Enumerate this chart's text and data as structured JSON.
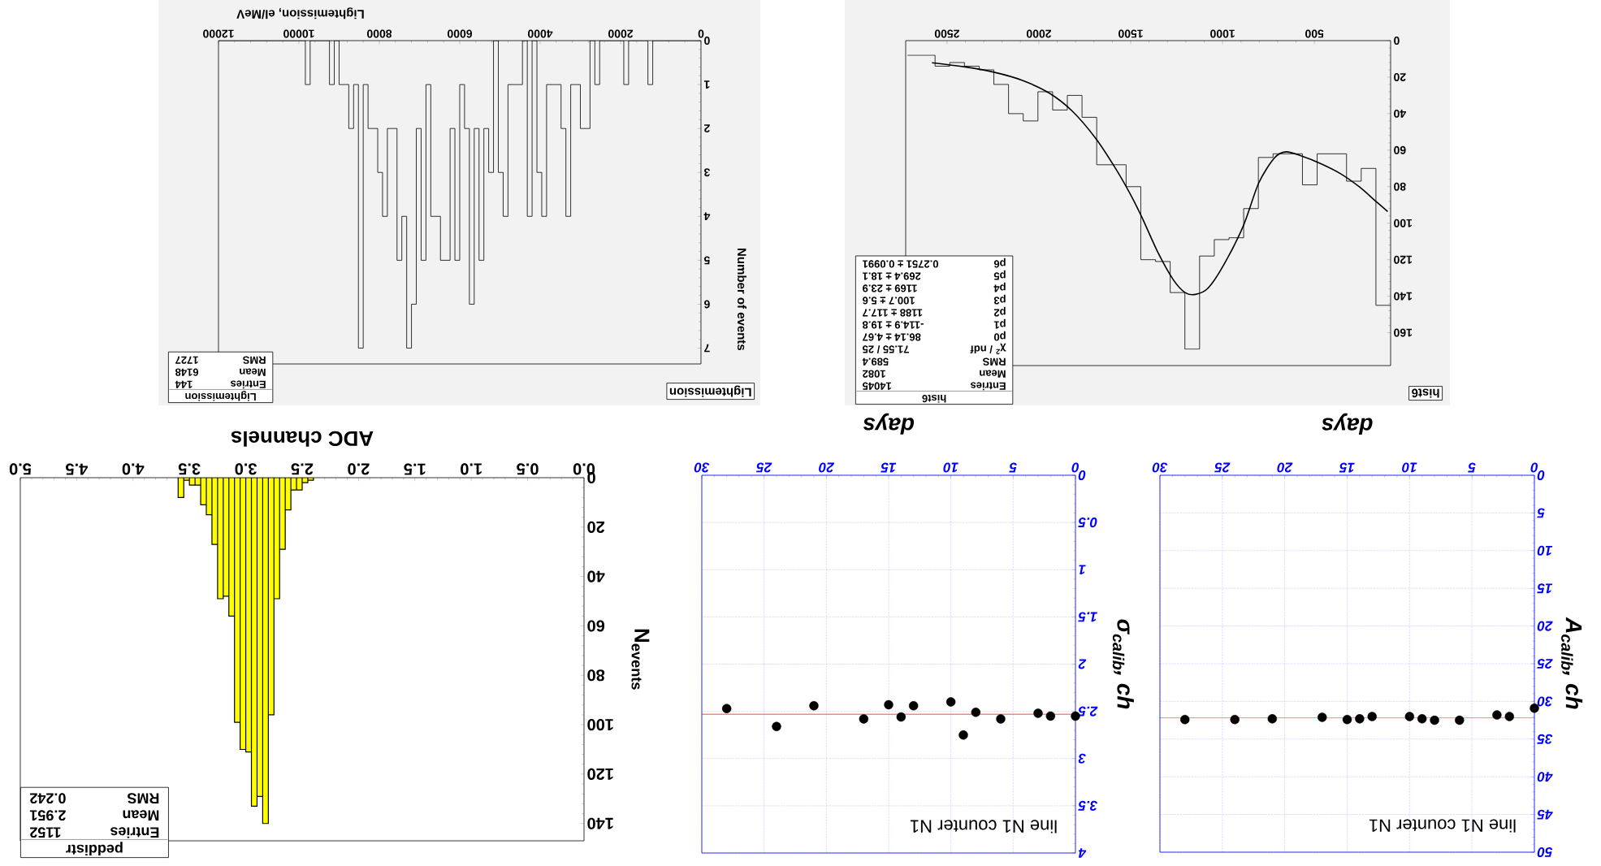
{
  "chart_data": [
    {
      "type": "histogram",
      "title": "Lightemission",
      "xlabel": "Lightemission, el/MeV",
      "ylabel": "Number of events",
      "color": "#000000",
      "bins": [
        0,
        120,
        240,
        360,
        480,
        600,
        720,
        840,
        960,
        1080,
        1200,
        1320,
        1440,
        1560,
        1680,
        1800,
        1920,
        2040,
        2160,
        2280,
        2400,
        2520,
        2640,
        2760,
        2880,
        3000,
        3120,
        3240,
        3360,
        3480,
        3600,
        3720,
        3840,
        3960,
        4080,
        4200,
        4320,
        4440,
        4560,
        4680,
        4800,
        4920,
        5040,
        5160,
        5280,
        5400,
        5520,
        5640,
        5760,
        5880,
        6000,
        6120,
        6240,
        6360,
        6480,
        6600,
        6720,
        6840,
        6960,
        7080,
        7200,
        7320,
        7440,
        7560,
        7680,
        7800,
        7920,
        8040,
        8160,
        8280,
        8400,
        8520,
        8640,
        8760,
        8880,
        9000,
        9120,
        9240,
        9360,
        9480,
        9600,
        9720,
        9840,
        9960,
        10080,
        10200,
        10320,
        10440,
        10560,
        10680,
        10800,
        10920,
        11040,
        11160,
        11280,
        11400,
        11520,
        11640,
        11760,
        11880,
        12000
      ],
      "values": [
        0,
        0,
        0,
        0,
        0,
        0,
        0,
        0,
        0,
        0,
        1,
        0,
        0,
        0,
        0,
        1,
        0,
        0,
        0,
        0,
        0,
        1,
        0,
        2,
        2,
        1,
        1,
        4,
        2,
        1,
        1,
        1,
        4,
        3,
        0,
        4,
        0,
        1,
        1,
        1,
        4,
        3,
        0,
        3,
        2,
        5,
        2,
        6,
        2,
        1,
        5,
        2,
        5,
        5,
        4,
        4,
        1,
        5,
        2,
        6,
        7,
        4,
        5,
        2,
        2,
        4,
        3,
        2,
        2,
        1,
        7,
        1,
        2,
        1,
        1,
        0,
        1,
        0,
        0,
        0,
        0,
        1,
        0,
        0,
        0,
        0,
        0,
        0,
        0,
        0,
        0,
        0,
        0,
        0,
        0,
        0,
        0,
        0,
        0,
        0
      ],
      "xlim": [
        12000,
        0
      ],
      "ylim": [
        7.36,
        0
      ],
      "xticks": [
        0,
        2000,
        4000,
        6000,
        8000,
        10000,
        12000
      ],
      "yticks": [
        0,
        1,
        2,
        3,
        4,
        5,
        6,
        7
      ],
      "annotations": [
        "Lightemission",
        "Entries",
        "144",
        "Mean",
        "6148",
        "RMS",
        "1727"
      ]
    },
    {
      "type": "histogram",
      "title": "hist6",
      "xlim": [
        2725,
        85
      ],
      "ylim": [
        178,
        0
      ],
      "xticks": [
        500,
        1000,
        1500,
        2000,
        2500
      ],
      "yticks": [
        0,
        20,
        40,
        60,
        80,
        100,
        120,
        140,
        160
      ],
      "series": [
        {
          "type": "histogram",
          "color": "#000000",
          "bins": [
            85,
            165,
            245,
            325,
            405,
            485,
            565,
            645,
            725,
            805,
            885,
            965,
            1045,
            1125,
            1205,
            1285,
            1365,
            1445,
            1525,
            1605,
            1685,
            1765,
            1845,
            1925,
            2005,
            2085,
            2165,
            2245,
            2325,
            2405,
            2485,
            2565,
            2645,
            2715
          ],
          "values": [
            145,
            70,
            77,
            62,
            62,
            79,
            62,
            62,
            64,
            92,
            108,
            109,
            118,
            169,
            138,
            121,
            120,
            80,
            68,
            68,
            42,
            30,
            38,
            28,
            44,
            40,
            24,
            16,
            14,
            12,
            14,
            8,
            8
          ]
        },
        {
          "type": "line",
          "color": "#000000",
          "x": [
            101,
            169,
            254,
            359,
            465,
            570,
            655,
            718,
            803,
            887,
            993,
            1078,
            1147,
            1204,
            1268,
            1352,
            1437,
            1500,
            1585,
            1690,
            1817,
            1944,
            2092,
            2240,
            2409,
            2582
          ],
          "values": [
            93.6,
            87.7,
            80.2,
            72.8,
            67.4,
            63.2,
            60.9,
            64.3,
            78,
            101.5,
            122.8,
            135.5,
            139,
            138,
            131,
            116,
            97.2,
            84.5,
            69.6,
            53.6,
            38.7,
            28.7,
            21.7,
            17.4,
            14.3,
            12.1
          ]
        }
      ],
      "annotations": [
        "hist6",
        "Entries",
        "14045",
        "Mean",
        "1082",
        "RMS",
        "589.4",
        "χ$^{2}$ / ndf",
        "71.55 / 25",
        "p0",
        "86.14 ± 4.67",
        "p1",
        "-114.9 ± 19.8",
        "p2",
        "1188 ± 117.7",
        "p3",
        "100.7 ± 5.6",
        "p4",
        "1169 ± 23.9",
        "p5",
        "269.4 ± 18.1",
        "p6",
        "0.2751 ± 0.0991"
      ]
    },
    {
      "type": "histogram",
      "xlabel": "ADC channels",
      "ylabel": "N$_{events}$",
      "color": "#ffff00",
      "bins": [
        2.4,
        2.45,
        2.5,
        2.55,
        2.6,
        2.65,
        2.7,
        2.75,
        2.8,
        2.85,
        2.9,
        2.95,
        3.0,
        3.05,
        3.1,
        3.15,
        3.2,
        3.25,
        3.3,
        3.35,
        3.4,
        3.45,
        3.5,
        3.55,
        3.6
      ],
      "values": [
        1,
        2,
        5,
        5,
        13,
        29,
        49,
        96,
        140,
        129,
        133,
        111,
        110,
        99,
        56,
        48,
        49,
        27,
        15,
        11,
        3,
        3,
        1,
        8
      ],
      "xlim": [
        5,
        0
      ],
      "ylim": [
        147,
        0
      ],
      "xticks": [
        {
          "value": 0,
          "label": "0.0"
        },
        0.5,
        {
          "value": 1,
          "label": "1.0"
        },
        1.5,
        {
          "value": 2,
          "label": "2.0"
        },
        2.5,
        {
          "value": 3,
          "label": "3.0"
        },
        3.5,
        {
          "value": 4,
          "label": "4.0"
        },
        4.5,
        {
          "value": 5,
          "label": "5.0"
        }
      ],
      "yticks": [
        0,
        20,
        40,
        60,
        80,
        100,
        120,
        140
      ],
      "annotations": [
        "peddistr",
        "Entries",
        "1152",
        "Mean",
        "2.951",
        "RMS",
        "0.242"
      ]
    },
    {
      "type": "scatter",
      "xlabel": "days",
      "ylabel": "σ$_{calib}$, ch",
      "color": "#000000",
      "marker": "circle",
      "grid": true,
      "x": [
        0,
        2,
        3,
        6,
        8,
        9,
        10,
        13,
        14,
        15,
        17,
        21,
        24,
        28
      ],
      "values": [
        2.55,
        2.55,
        2.52,
        2.58,
        2.51,
        2.75,
        2.4,
        2.44,
        2.56,
        2.43,
        2.58,
        2.44,
        2.66,
        2.47
      ],
      "xlim": [
        30,
        0
      ],
      "ylim": [
        4,
        0
      ],
      "xticks": [
        0,
        5,
        10,
        15,
        20,
        25,
        30
      ],
      "yticks": [
        0,
        0.5,
        1,
        1.5,
        2,
        2.5,
        3,
        3.5,
        4
      ],
      "ref_lines": [
        {
          "axis": "y",
          "value": 2.53,
          "color": "#ff0000"
        }
      ],
      "annotations": [
        "line N1  counter N1"
      ]
    },
    {
      "type": "scatter",
      "xlabel": "days",
      "ylabel": "A$_{calib}$, ch",
      "color": "#000000",
      "marker": "circle",
      "grid": true,
      "x": [
        0,
        2,
        3,
        6,
        8,
        9,
        10,
        13,
        14,
        15,
        17,
        21,
        24,
        28
      ],
      "values": [
        30.9,
        32,
        31.8,
        32.5,
        32.5,
        32.3,
        32,
        32,
        32.3,
        32.4,
        32.1,
        32.3,
        32.4,
        32.4
      ],
      "xlim": [
        30,
        0
      ],
      "ylim": [
        50,
        0
      ],
      "xticks": [
        0,
        5,
        10,
        15,
        20,
        25,
        30
      ],
      "yticks": [
        0,
        5,
        10,
        15,
        20,
        25,
        30,
        35,
        40,
        45,
        50
      ],
      "ref_lines": [
        {
          "axis": "y",
          "value": 32.2,
          "color": "#ff0000"
        }
      ],
      "annotations": [
        "line N1  counter N1"
      ]
    }
  ]
}
